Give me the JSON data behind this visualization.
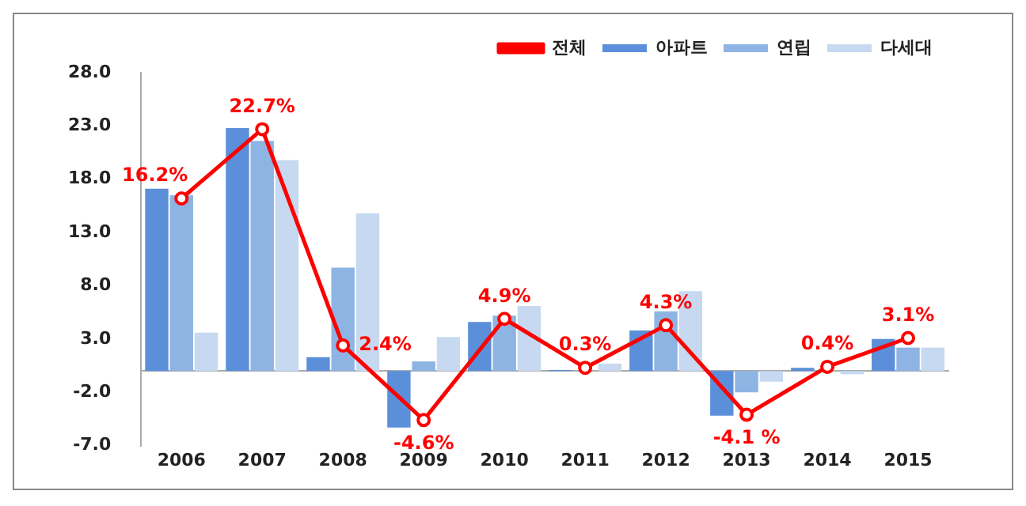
{
  "chart_data": {
    "type": "bar",
    "categories": [
      "2006",
      "2007",
      "2008",
      "2009",
      "2010",
      "2011",
      "2012",
      "2013",
      "2014",
      "2015"
    ],
    "series": [
      {
        "name": "아파트",
        "type": "bar",
        "color": "#5b8fd9",
        "values": [
          17.1,
          22.8,
          1.3,
          -5.3,
          4.6,
          0.1,
          3.8,
          -4.2,
          0.3,
          3.0
        ]
      },
      {
        "name": "연립",
        "type": "bar",
        "color": "#8eb4e3",
        "values": [
          16.5,
          21.6,
          9.7,
          0.9,
          5.2,
          null,
          5.6,
          -2.0,
          null,
          2.2
        ]
      },
      {
        "name": "다세대",
        "type": "bar",
        "color": "#c6d9f1",
        "values": [
          3.6,
          19.8,
          14.8,
          3.2,
          6.1,
          0.7,
          7.5,
          -1.0,
          -0.3,
          2.2
        ]
      },
      {
        "name": "전체",
        "type": "line",
        "color": "#ff0000",
        "marker": "circle",
        "values": [
          16.2,
          22.7,
          2.4,
          -4.6,
          4.9,
          0.3,
          4.3,
          -4.1,
          0.4,
          3.1
        ],
        "value_labels": [
          "16.2%",
          "22.7%",
          "2.4%",
          "-4.6%",
          "4.9%",
          "0.3%",
          "4.3%",
          "-4.1 %",
          "0.4%",
          "3.1%"
        ]
      }
    ],
    "ylim": [
      -7,
      28
    ],
    "yticks": [
      {
        "value": -7,
        "label": "-7.0"
      },
      {
        "value": -2,
        "label": "-2.0"
      },
      {
        "value": 3,
        "label": "3.0"
      },
      {
        "value": 8,
        "label": "8.0"
      },
      {
        "value": 13,
        "label": "13.0"
      },
      {
        "value": 18,
        "label": "18.0"
      },
      {
        "value": 23,
        "label": "23.0"
      },
      {
        "value": 28,
        "label": "28.0"
      }
    ],
    "legend": "top right"
  }
}
